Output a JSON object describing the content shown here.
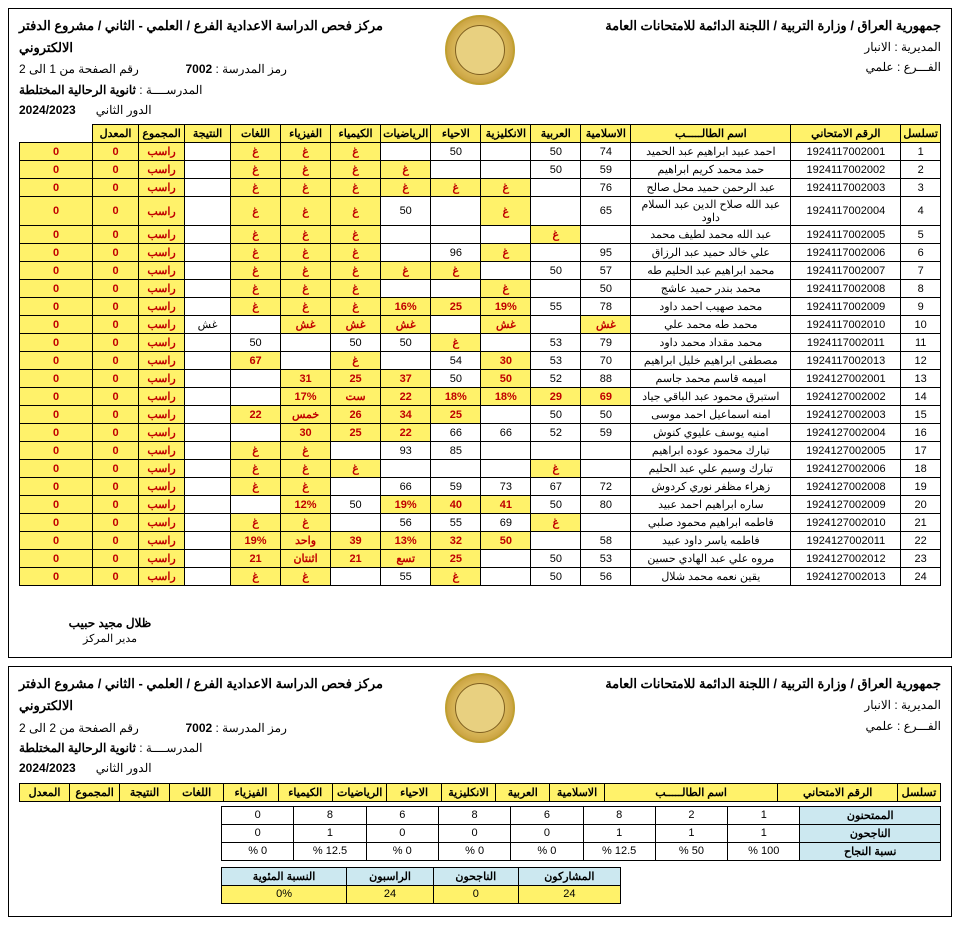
{
  "header": {
    "republic": "جمهورية العراق / وزارة التربية / اللجنة الدائمة للامتحانات العامة",
    "center": "مركز فحص الدراسة الاعدادية الفرع / العلمي - الثاني / مشروع الدفتر الالكتروني",
    "directorate_label": "المديرية :",
    "directorate": "الانبار",
    "branch_label": "الفـــرع :",
    "branch": "علمي",
    "school_code_label": "رمز المدرسة :",
    "school_code": "7002",
    "school_label": "المدرســــة :",
    "school": "ثانوية الرحالية المختلطة",
    "round_label": "الدور الثاني",
    "year": "2024/2023",
    "page1": "رقم الصفحة من 1 الى 2",
    "page2": "رقم الصفحة من 2 الى 2"
  },
  "columns": [
    "تسلسل",
    "الرقم الامتحاني",
    "اسم الطالـــــب",
    "الاسلامية",
    "العربية",
    "الانكليزية",
    "الاحياء",
    "الرياضيات",
    "الكيمياء",
    "الفيزياء",
    "اللغات",
    "النتيجة",
    "المجموع",
    "المعدل"
  ],
  "rows": [
    {
      "n": 1,
      "id": "1924117002001",
      "name": "احمد عبيد ابراهيم عبد الحميد",
      "c": [
        "74",
        "50",
        "",
        "50",
        "",
        "غ",
        "غ",
        "غ",
        ""
      ],
      "hl": [
        0,
        0,
        0,
        0,
        0,
        1,
        1,
        1,
        0
      ],
      "res": "راسب",
      "sum": "0",
      "avg": "0"
    },
    {
      "n": 2,
      "id": "1924117002002",
      "name": "حمد محمد كريم ابراهيم",
      "c": [
        "59",
        "50",
        "",
        "",
        "غ",
        "غ",
        "غ",
        "غ",
        ""
      ],
      "hl": [
        0,
        0,
        0,
        0,
        1,
        1,
        1,
        1,
        0
      ],
      "res": "راسب",
      "sum": "0",
      "avg": "0"
    },
    {
      "n": 3,
      "id": "1924117002003",
      "name": "عبد الرحمن حميد محل صالح",
      "c": [
        "76",
        "",
        "غ",
        "غ",
        "غ",
        "غ",
        "غ",
        "غ",
        ""
      ],
      "hl": [
        0,
        0,
        1,
        1,
        1,
        1,
        1,
        1,
        0
      ],
      "res": "راسب",
      "sum": "0",
      "avg": "0"
    },
    {
      "n": 4,
      "id": "1924117002004",
      "name": "عبد الله صلاح الدين عبد السلام داود",
      "c": [
        "65",
        "",
        "غ",
        "",
        "50",
        "غ",
        "غ",
        "غ",
        ""
      ],
      "hl": [
        0,
        0,
        1,
        0,
        0,
        1,
        1,
        1,
        0
      ],
      "res": "راسب",
      "sum": "0",
      "avg": "0"
    },
    {
      "n": 5,
      "id": "1924117002005",
      "name": "عبد الله محمد لطيف محمد",
      "c": [
        "",
        "غ",
        "",
        "",
        "",
        "غ",
        "غ",
        "غ",
        ""
      ],
      "hl": [
        0,
        1,
        0,
        0,
        0,
        1,
        1,
        1,
        0
      ],
      "res": "راسب",
      "sum": "0",
      "avg": "0"
    },
    {
      "n": 6,
      "id": "1924117002006",
      "name": "علي خالد حميد عبد الرزاق",
      "c": [
        "95",
        "",
        "غ",
        "96",
        "",
        "غ",
        "غ",
        "غ",
        ""
      ],
      "hl": [
        0,
        0,
        1,
        0,
        0,
        1,
        1,
        1,
        0
      ],
      "res": "راسب",
      "sum": "0",
      "avg": "0"
    },
    {
      "n": 7,
      "id": "1924117002007",
      "name": "محمد ابراهيم عبد الحليم طه",
      "c": [
        "57",
        "50",
        "",
        "غ",
        "غ",
        "غ",
        "غ",
        "غ",
        ""
      ],
      "hl": [
        0,
        0,
        0,
        1,
        1,
        1,
        1,
        1,
        0
      ],
      "res": "راسب",
      "sum": "0",
      "avg": "0"
    },
    {
      "n": 8,
      "id": "1924117002008",
      "name": "محمد بندر حميد عاشج",
      "c": [
        "50",
        "",
        "غ",
        "",
        "",
        "غ",
        "غ",
        "غ",
        ""
      ],
      "hl": [
        0,
        0,
        1,
        0,
        0,
        1,
        1,
        1,
        0
      ],
      "res": "راسب",
      "sum": "0",
      "avg": "0"
    },
    {
      "n": 9,
      "id": "1924117002009",
      "name": "محمد صهيب احمد داود",
      "c": [
        "78",
        "55",
        "19%",
        "25",
        "16%",
        "غ",
        "غ",
        "غ",
        ""
      ],
      "hl": [
        0,
        0,
        1,
        1,
        1,
        1,
        1,
        1,
        0
      ],
      "res": "راسب",
      "sum": "0",
      "avg": "0"
    },
    {
      "n": 10,
      "id": "1924117002010",
      "name": "محمد طه محمد علي",
      "c": [
        "غش",
        "",
        "غش",
        "",
        "غش",
        "غش",
        "غش",
        "",
        "غش"
      ],
      "hl": [
        1,
        0,
        1,
        0,
        1,
        1,
        1,
        0,
        0
      ],
      "res": "راسب",
      "sum": "0",
      "avg": "0"
    },
    {
      "n": 11,
      "id": "1924117002011",
      "name": "محمد مقداد محمد داود",
      "c": [
        "79",
        "53",
        "",
        "غ",
        "50",
        "50",
        "",
        "50",
        ""
      ],
      "hl": [
        0,
        0,
        0,
        1,
        0,
        0,
        0,
        0,
        0
      ],
      "res": "راسب",
      "sum": "0",
      "avg": "0"
    },
    {
      "n": 12,
      "id": "1924117002013",
      "name": "مصطفى ابراهيم خليل ابراهيم",
      "c": [
        "70",
        "53",
        "30",
        "54",
        "",
        "غ",
        "",
        "67",
        ""
      ],
      "hl": [
        0,
        0,
        1,
        0,
        0,
        1,
        0,
        1,
        0
      ],
      "res": "راسب",
      "sum": "0",
      "avg": "0"
    },
    {
      "n": 13,
      "id": "1924127002001",
      "name": "اميمه قاسم محمد جاسم",
      "c": [
        "88",
        "52",
        "50",
        "50",
        "37",
        "25",
        "31",
        "",
        ""
      ],
      "hl": [
        0,
        0,
        1,
        0,
        1,
        1,
        1,
        0,
        0
      ],
      "res": "راسب",
      "sum": "0",
      "avg": "0"
    },
    {
      "n": 14,
      "id": "1924127002002",
      "name": "استبرق محمود عبد الباقي جياد",
      "c": [
        "69",
        "29",
        "18%",
        "18%",
        "22",
        "ست",
        "17%",
        "",
        ""
      ],
      "hl": [
        1,
        1,
        1,
        1,
        1,
        1,
        1,
        0,
        0
      ],
      "res": "راسب",
      "sum": "0",
      "avg": "0"
    },
    {
      "n": 15,
      "id": "1924127002003",
      "name": "امنه اسماعيل احمد موسى",
      "c": [
        "50",
        "50",
        "",
        "25",
        "34",
        "26",
        "خمس",
        "22",
        ""
      ],
      "hl": [
        0,
        0,
        0,
        1,
        1,
        1,
        1,
        1,
        0
      ],
      "res": "راسب",
      "sum": "0",
      "avg": "0"
    },
    {
      "n": 16,
      "id": "1924127002004",
      "name": "امنيه يوسف عليوي كنوش",
      "c": [
        "59",
        "52",
        "66",
        "66",
        "22",
        "25",
        "30",
        "",
        ""
      ],
      "hl": [
        0,
        0,
        0,
        0,
        1,
        1,
        1,
        0,
        0
      ],
      "res": "راسب",
      "sum": "0",
      "avg": "0"
    },
    {
      "n": 17,
      "id": "1924127002005",
      "name": "تبارك محمود عوده ابراهيم",
      "c": [
        "",
        "",
        "",
        "85",
        "93",
        "",
        "غ",
        "غ",
        ""
      ],
      "hl": [
        0,
        0,
        0,
        0,
        0,
        0,
        1,
        1,
        0
      ],
      "res": "راسب",
      "sum": "0",
      "avg": "0"
    },
    {
      "n": 18,
      "id": "1924127002006",
      "name": "تبارك وسيم علي عبد الحليم",
      "c": [
        "",
        "غ",
        "",
        "",
        "",
        "غ",
        "غ",
        "غ",
        ""
      ],
      "hl": [
        0,
        1,
        0,
        0,
        0,
        1,
        1,
        1,
        0
      ],
      "res": "راسب",
      "sum": "0",
      "avg": "0"
    },
    {
      "n": 19,
      "id": "1924127002008",
      "name": "زهراء مظفر نوري كردوش",
      "c": [
        "72",
        "67",
        "73",
        "59",
        "66",
        "",
        "غ",
        "غ",
        ""
      ],
      "hl": [
        0,
        0,
        0,
        0,
        0,
        0,
        1,
        1,
        0
      ],
      "res": "راسب",
      "sum": "0",
      "avg": "0"
    },
    {
      "n": 20,
      "id": "1924127002009",
      "name": "ساره ابراهيم احمد عبيد",
      "c": [
        "80",
        "50",
        "41",
        "40",
        "19%",
        "50",
        "12%",
        "",
        ""
      ],
      "hl": [
        0,
        0,
        1,
        1,
        1,
        0,
        1,
        0,
        0
      ],
      "res": "راسب",
      "sum": "0",
      "avg": "0"
    },
    {
      "n": 21,
      "id": "1924127002010",
      "name": "فاطمه ابراهيم محمود صلبي",
      "c": [
        "",
        "غ",
        "69",
        "55",
        "56",
        "",
        "غ",
        "غ",
        ""
      ],
      "hl": [
        0,
        1,
        0,
        0,
        0,
        0,
        1,
        1,
        0
      ],
      "res": "راسب",
      "sum": "0",
      "avg": "0"
    },
    {
      "n": 22,
      "id": "1924127002011",
      "name": "فاطمه ياسر داود عبيد",
      "c": [
        "58",
        "",
        "50",
        "32",
        "13%",
        "39",
        "واحد",
        "19%",
        ""
      ],
      "hl": [
        0,
        0,
        1,
        1,
        1,
        1,
        1,
        1,
        0
      ],
      "res": "راسب",
      "sum": "0",
      "avg": "0"
    },
    {
      "n": 23,
      "id": "1924127002012",
      "name": "مروه علي عبد الهادي حسين",
      "c": [
        "53",
        "50",
        "",
        "25",
        "تسع",
        "21",
        "اثنتان",
        "21",
        ""
      ],
      "hl": [
        0,
        0,
        0,
        1,
        1,
        1,
        1,
        1,
        0
      ],
      "res": "راسب",
      "sum": "0",
      "avg": "0"
    },
    {
      "n": 24,
      "id": "1924127002013",
      "name": "يقين نعمه محمد شلال",
      "c": [
        "56",
        "50",
        "",
        "غ",
        "55",
        "",
        "غ",
        "غ",
        ""
      ],
      "hl": [
        0,
        0,
        0,
        1,
        0,
        0,
        1,
        1,
        0
      ],
      "res": "راسب",
      "sum": "0",
      "avg": "0"
    }
  ],
  "signature": {
    "name": "ظلال مجيد حبيب",
    "title": "مدير المركز"
  },
  "summary": {
    "rows_label": [
      "الممتحنون",
      "الناجحون",
      "نسبة النجاح"
    ],
    "data": [
      [
        "1",
        "2",
        "8",
        "6",
        "8",
        "6",
        "8",
        "0"
      ],
      [
        "1",
        "1",
        "1",
        "0",
        "0",
        "0",
        "1",
        "0"
      ],
      [
        "100 %",
        "50 %",
        "12.5 %",
        "0 %",
        "0 %",
        "0 %",
        "12.5 %",
        "0 %"
      ]
    ],
    "part_cols": [
      "المشاركون",
      "الناجحون",
      "الراسبون",
      "النسبة المئوية"
    ],
    "part_vals": [
      "24",
      "0",
      "24",
      "0%"
    ]
  }
}
